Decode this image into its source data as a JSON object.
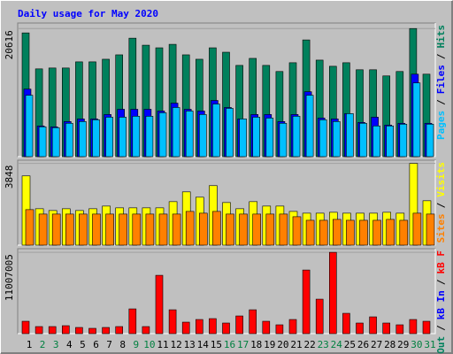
{
  "title": "Daily usage for May 2020",
  "separator": "/",
  "chart_data": [
    {
      "type": "bar",
      "ylim": [
        0,
        21500
      ],
      "yticks": [
        20616
      ],
      "series": [
        {
          "name": "Hits",
          "color": "#00805c",
          "values": [
            19910,
            14120,
            14260,
            14260,
            15250,
            15250,
            15670,
            16380,
            19060,
            17930,
            17510,
            18070,
            16380,
            15670,
            17510,
            16800,
            14680,
            15810,
            14680,
            13700,
            15110,
            18780,
            15530,
            14540,
            15110,
            13980,
            13980,
            12990,
            13700,
            20616,
            13270
          ]
        },
        {
          "name": "Files",
          "color": "#0000ff",
          "values": [
            10870,
            4940,
            4800,
            5650,
            6070,
            6070,
            6780,
            7620,
            7620,
            7620,
            7340,
            8610,
            7620,
            7340,
            9040,
            7910,
            6070,
            6780,
            6780,
            5650,
            6780,
            10450,
            6210,
            6070,
            6920,
            5510,
            6350,
            5080,
            5370,
            13270,
            5370
          ]
        },
        {
          "name": "Pages",
          "color": "#00c0ff",
          "values": [
            9880,
            4800,
            4660,
            5370,
            5650,
            5930,
            6350,
            6350,
            6500,
            6500,
            7060,
            7910,
            7340,
            6780,
            8470,
            7770,
            6070,
            6350,
            6210,
            5370,
            6500,
            9880,
            5930,
            5650,
            6920,
            5370,
            4940,
            4940,
            5220,
            11860,
            5220
          ]
        }
      ]
    },
    {
      "type": "bar",
      "ylim": [
        0,
        4000
      ],
      "yticks": [
        3848
      ],
      "series": [
        {
          "name": "Visits",
          "color": "#ffff00",
          "values": [
            3260,
            1714,
            1630,
            1714,
            1630,
            1714,
            1839,
            1756,
            1756,
            1756,
            1756,
            2048,
            2508,
            2257,
            2801,
            2006,
            1714,
            2048,
            1839,
            1839,
            1588,
            1505,
            1505,
            1547,
            1505,
            1505,
            1505,
            1547,
            1505,
            3848,
            2090
          ]
        },
        {
          "name": "Sites",
          "color": "#ff8000",
          "values": [
            1672,
            1463,
            1463,
            1463,
            1463,
            1463,
            1463,
            1463,
            1463,
            1463,
            1463,
            1463,
            1588,
            1505,
            1588,
            1463,
            1463,
            1463,
            1463,
            1463,
            1338,
            1170,
            1170,
            1212,
            1170,
            1170,
            1170,
            1212,
            1170,
            1505,
            1463
          ]
        }
      ]
    },
    {
      "type": "bar",
      "ylim": [
        0,
        11500000
      ],
      "yticks": [
        11007005
      ],
      "categories": [
        "1",
        "2",
        "3",
        "4",
        "5",
        "6",
        "7",
        "8",
        "9",
        "10",
        "11",
        "12",
        "13",
        "14",
        "15",
        "16",
        "17",
        "18",
        "19",
        "20",
        "21",
        "22",
        "23",
        "24",
        "25",
        "26",
        "27",
        "28",
        "29",
        "30",
        "31"
      ],
      "category_colors": [
        "#000000",
        "#008040",
        "#008040",
        "#000000",
        "#000000",
        "#000000",
        "#000000",
        "#000000",
        "#008040",
        "#008040",
        "#000000",
        "#000000",
        "#000000",
        "#000000",
        "#000000",
        "#008040",
        "#008040",
        "#000000",
        "#000000",
        "#000000",
        "#000000",
        "#000000",
        "#008040",
        "#008040",
        "#000000",
        "#000000",
        "#000000",
        "#000000",
        "#000000",
        "#008040",
        "#008040"
      ],
      "series": [
        {
          "name": "kB F",
          "color": "#ff0000",
          "values": [
            1675000,
            957000,
            957000,
            1077000,
            837000,
            718000,
            837000,
            957000,
            3350000,
            957000,
            7896000,
            3230000,
            1555000,
            1914000,
            2034000,
            1436000,
            2393000,
            3230000,
            1675000,
            1196000,
            1914000,
            8614000,
            4666000,
            11007005,
            2752000,
            1436000,
            2273000,
            1436000,
            1196000,
            1914000,
            1675000
          ]
        },
        {
          "name": "kB In",
          "color": "#0000ff",
          "values": [
            0,
            0,
            0,
            0,
            0,
            0,
            0,
            0,
            0,
            0,
            0,
            0,
            0,
            0,
            0,
            0,
            0,
            0,
            0,
            0,
            0,
            0,
            0,
            0,
            0,
            0,
            0,
            0,
            0,
            0,
            0
          ]
        },
        {
          "name": "kB Out",
          "color": "#00805c",
          "values": [
            0,
            0,
            0,
            0,
            0,
            0,
            0,
            0,
            0,
            0,
            0,
            0,
            0,
            0,
            0,
            0,
            0,
            0,
            0,
            0,
            0,
            0,
            0,
            0,
            0,
            0,
            0,
            0,
            0,
            0,
            0
          ]
        }
      ]
    }
  ]
}
